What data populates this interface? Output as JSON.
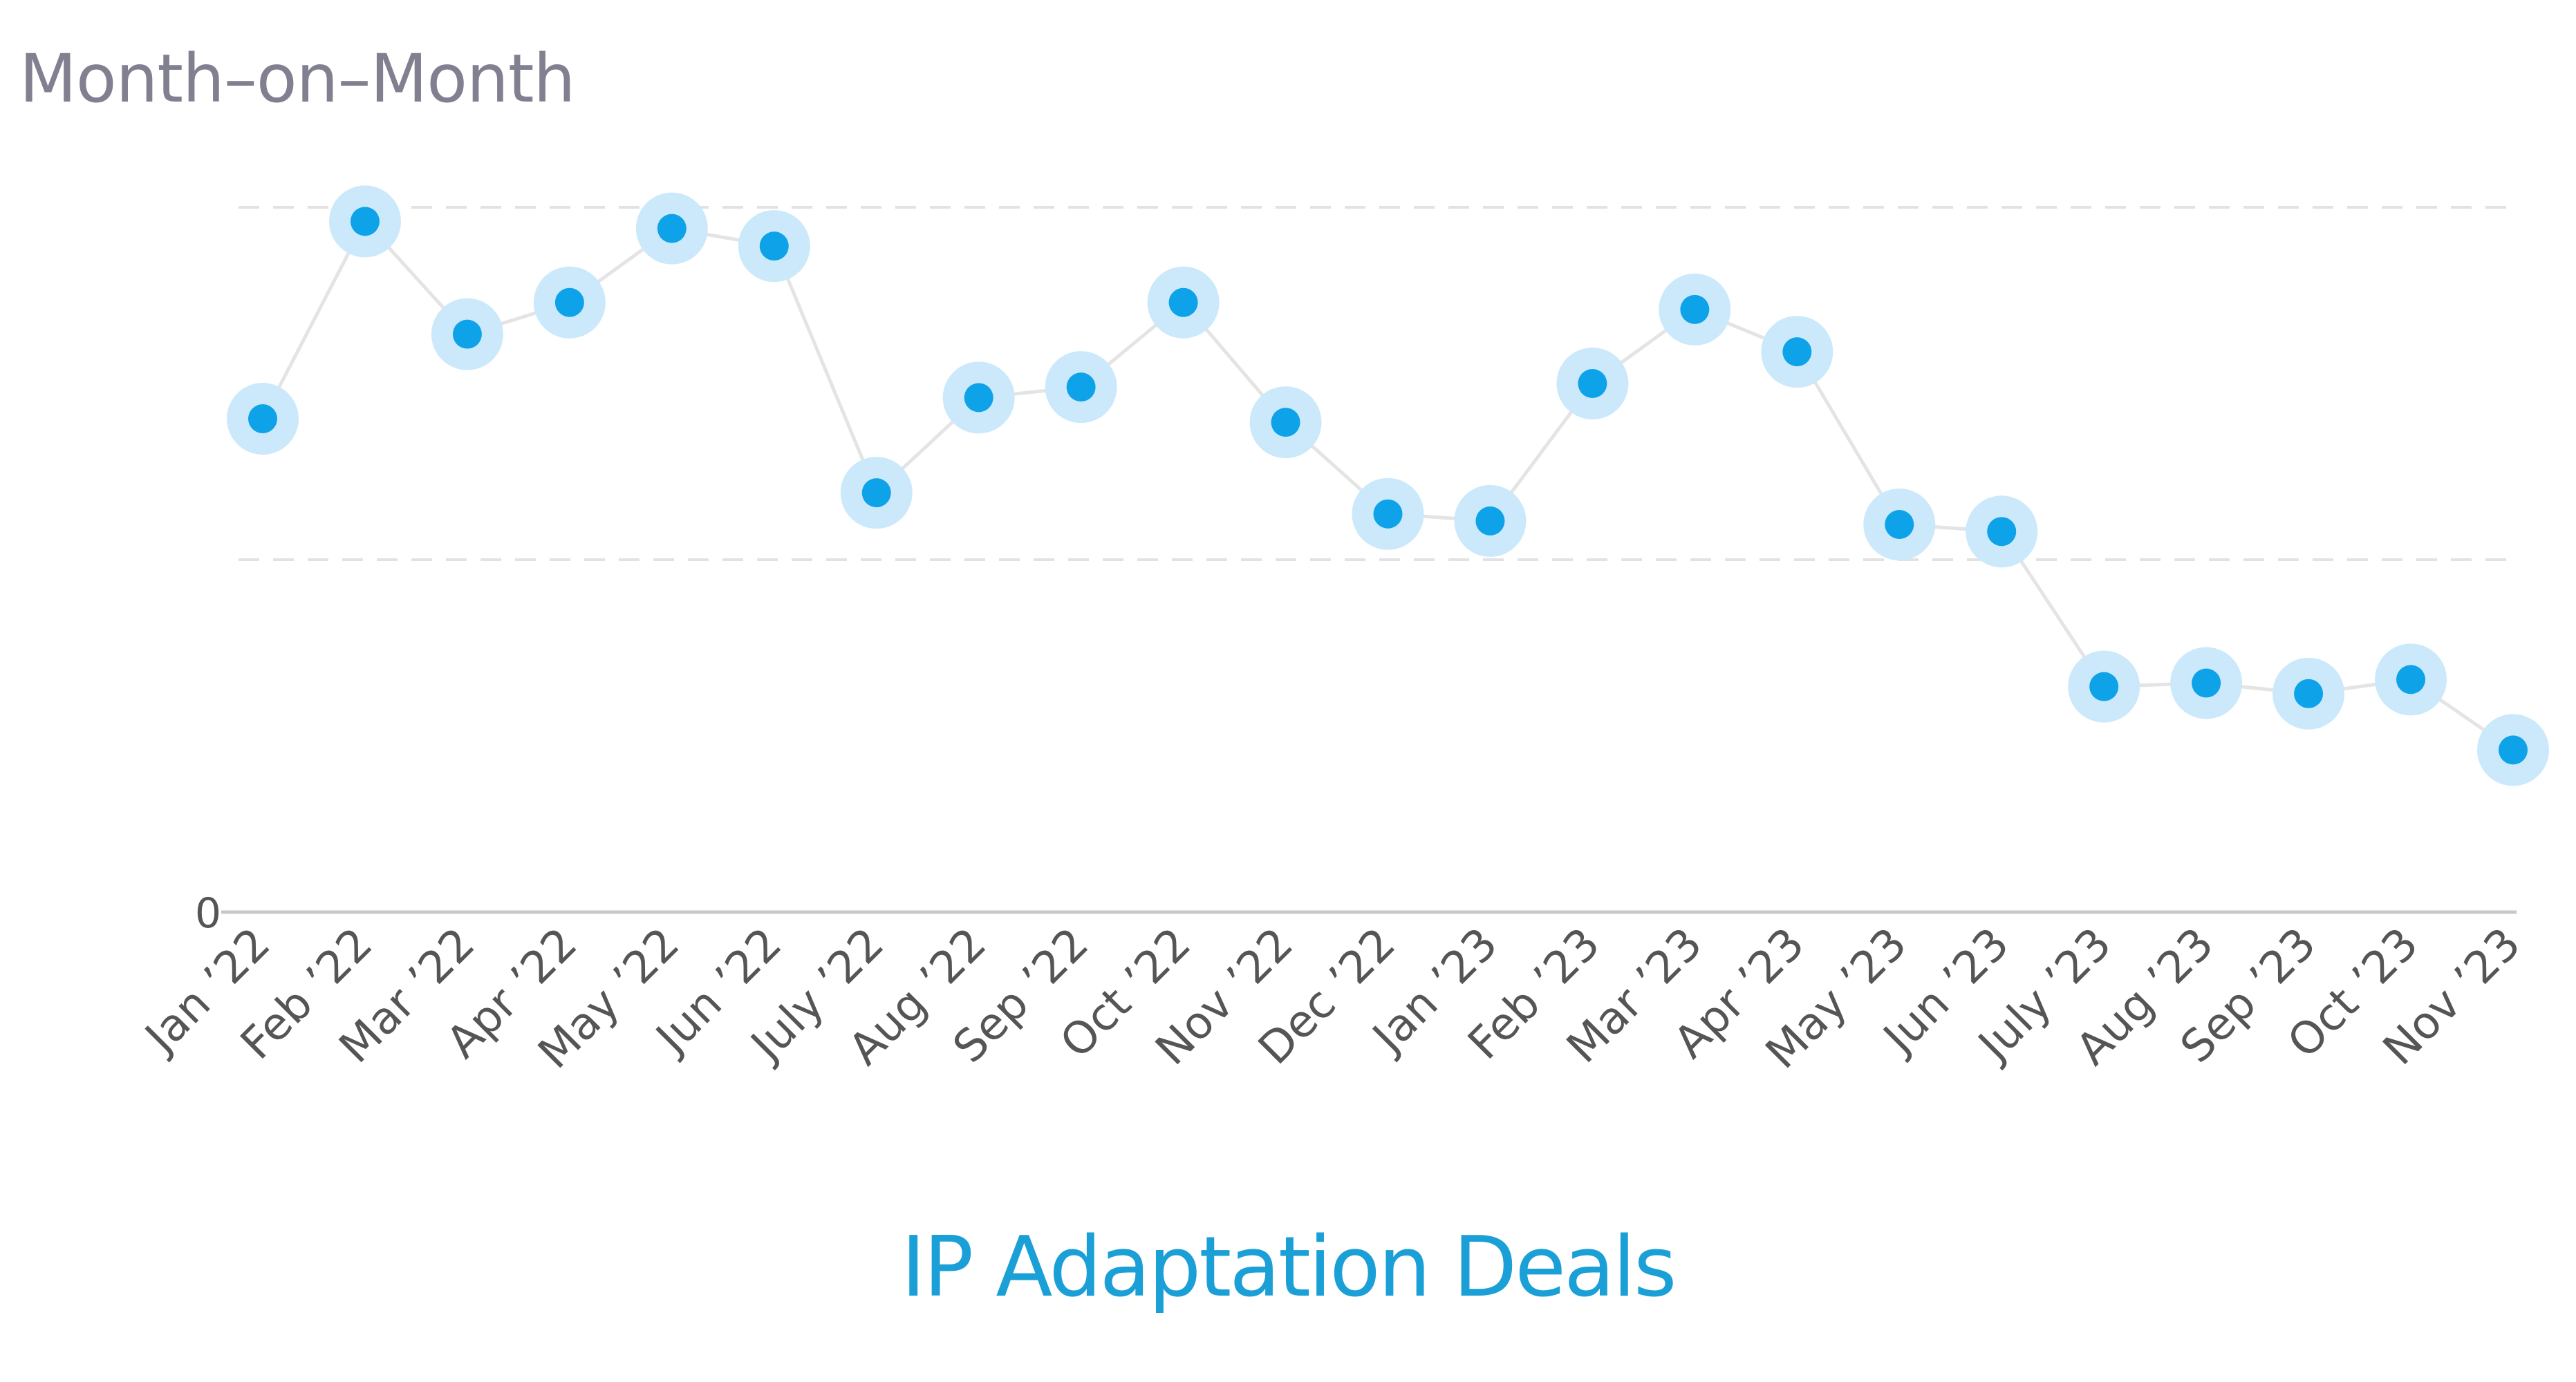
{
  "chart_data": {
    "type": "line",
    "subtitle": "Month–on–Month",
    "title": "IP Adaptation Deals",
    "xlabel": "",
    "ylabel": "",
    "categories": [
      "Jan ’22",
      "Feb ’22",
      "Mar ’22",
      "Apr ’22",
      "May ’22",
      "Jun ’22",
      "July ’22",
      "Aug ’22",
      "Sep ’22",
      "Oct ’22",
      "Nov ’22",
      "Dec ’22",
      "Jan ’23",
      "Feb ’23",
      "Mar ’23",
      "Apr ’23",
      "May ’23",
      "Jun ’23",
      "July ’23",
      "Aug ’23",
      "Sep ’23",
      "Oct ’23",
      "Nov ’23"
    ],
    "series": [
      {
        "name": "IP Adaptation Deals",
        "values": [
          70,
          98,
          82,
          86.5,
          97,
          94.5,
          59.5,
          73,
          74.5,
          86.5,
          69.5,
          56.5,
          55.5,
          75,
          85.5,
          79.5,
          55,
          54,
          32,
          32.5,
          31,
          33,
          23
        ]
      }
    ],
    "ylim": [
      0,
      100
    ],
    "yticks": [
      {
        "value": 0,
        "label": "0"
      }
    ],
    "gridlines": [
      50,
      100
    ],
    "legend": "none",
    "colors": {
      "point": "#0ea2e8",
      "halo": "#cbe9fb",
      "line": "#e4e4e4",
      "grid": "#e2e2e2",
      "axis": "#c8c8c8",
      "tick_text": "#555555"
    }
  }
}
